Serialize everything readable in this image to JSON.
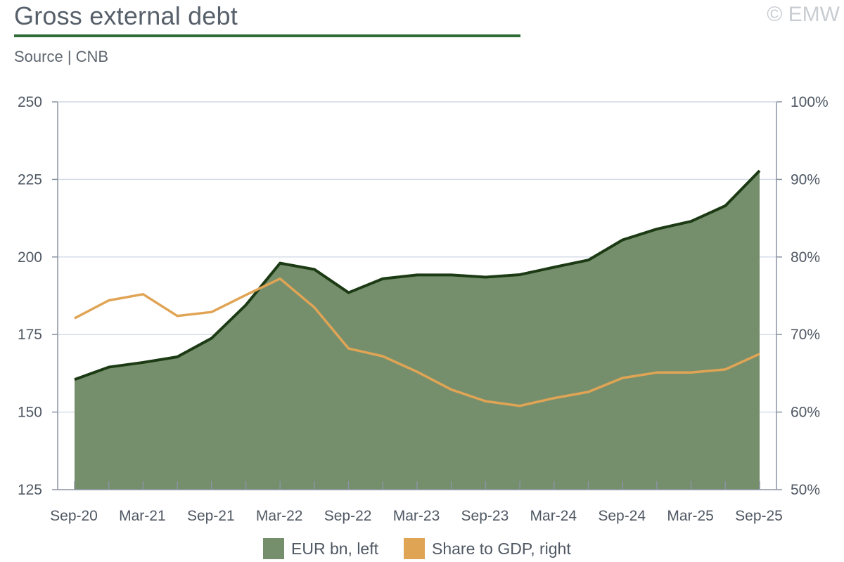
{
  "header": {
    "title": "Gross external debt",
    "source": "Source | CNB",
    "brand": "© EMW"
  },
  "colors": {
    "area_fill": "#758f6c",
    "area_line": "#1c3b14",
    "gdp_line": "#e0a455",
    "grid": "#d5dde8",
    "axis": "#8a94a2",
    "title_rule": "#2f6b35"
  },
  "legend": {
    "debt_label": "EUR bn, left",
    "gdp_label": "Share to GDP, right"
  },
  "chart_data": {
    "type": "line",
    "title": "Gross external debt",
    "x": [
      "Sep-20",
      "Dec-20",
      "Mar-21",
      "Jun-21",
      "Sep-21",
      "Dec-21",
      "Mar-22",
      "Jun-22",
      "Sep-22",
      "Dec-22",
      "Mar-23",
      "Jun-23",
      "Sep-23",
      "Dec-23",
      "Mar-24",
      "Jun-24",
      "Sep-24",
      "Dec-24",
      "Mar-25",
      "Jun-25",
      "Sep-25"
    ],
    "x_tick_labels": [
      "Sep-20",
      "Mar-21",
      "Sep-21",
      "Mar-22",
      "Sep-22",
      "Mar-23",
      "Sep-23",
      "Mar-24",
      "Sep-24",
      "Mar-25",
      "Sep-25"
    ],
    "y_left_ticks": [
      "125",
      "150",
      "175",
      "200",
      "225",
      "250"
    ],
    "y_right_ticks": [
      "50%",
      "60%",
      "70%",
      "80%",
      "90%",
      "100%"
    ],
    "ylim_left": [
      125,
      250
    ],
    "ylim_right": [
      50,
      100
    ],
    "grid": true,
    "legend_position": "bottom",
    "series": [
      {
        "name": "EUR bn, left",
        "kind": "area",
        "axis": "left",
        "values": [
          160.5,
          164.5,
          166,
          167.8,
          173.8,
          184.5,
          198,
          196,
          188.5,
          193,
          194.2,
          194.2,
          193.5,
          194.3,
          196.7,
          199,
          205.5,
          209,
          211.5,
          216.5,
          227.8
        ]
      },
      {
        "name": "Share to GDP, right",
        "kind": "line",
        "axis": "right",
        "values": [
          72.1,
          74.4,
          75.2,
          72.4,
          72.9,
          75.1,
          77.2,
          73.5,
          68.2,
          67.2,
          65.2,
          62.9,
          61.4,
          60.8,
          61.8,
          62.6,
          64.4,
          65.1,
          65.1,
          65.5,
          67.5
        ]
      }
    ]
  }
}
